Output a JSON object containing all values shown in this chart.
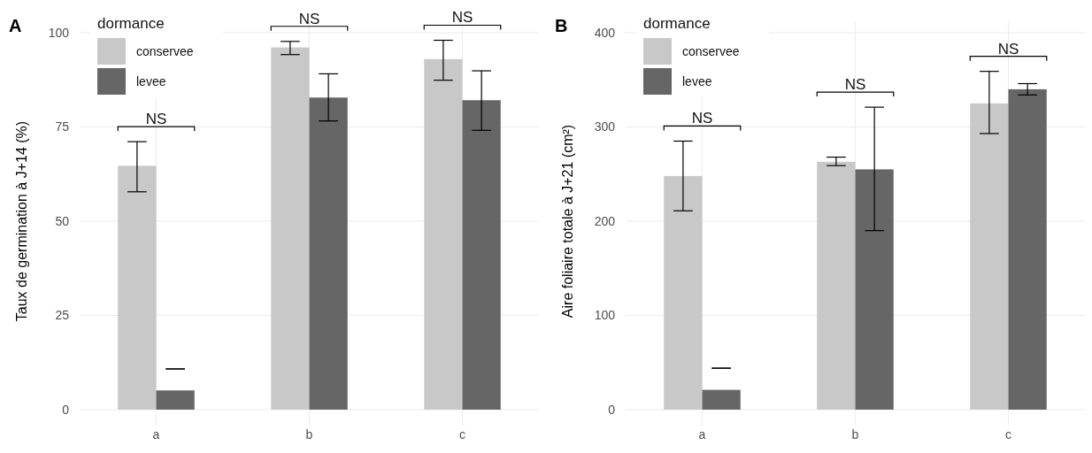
{
  "chart_data": [
    {
      "type": "bar",
      "title": "A",
      "ylabel": "Taux de germination à J+14 (%)",
      "legend_title": "dormance",
      "categories": [
        "a",
        "b",
        "c"
      ],
      "ylim": [
        0,
        103
      ],
      "yticks": [
        0,
        25,
        50,
        75,
        100
      ],
      "grid": true,
      "legend": "top left",
      "series": [
        {
          "name": "conservee",
          "color": "#c8c8c8",
          "values": [
            64.7,
            96.1,
            93.0
          ],
          "errors": [
            [
              57.8,
              71.1
            ],
            [
              94.2,
              97.7
            ],
            [
              87.4,
              98.0
            ]
          ]
        },
        {
          "name": "levee",
          "color": "#666666",
          "values": [
            5.1,
            82.8,
            82.1
          ],
          "errors": [
            [
              10.8,
              10.8
            ],
            [
              76.6,
              89.1
            ],
            [
              74.1,
              89.9
            ]
          ]
        }
      ],
      "annotations": [
        "NS",
        "NS",
        "NS"
      ]
    },
    {
      "type": "bar",
      "title": "B",
      "ylabel": "Aire foliaire totale à J+21 (cm²)",
      "legend_title": "dormance",
      "categories": [
        "a",
        "b",
        "c"
      ],
      "ylim": [
        0,
        412
      ],
      "yticks": [
        0,
        100,
        200,
        300,
        400
      ],
      "grid": true,
      "legend": "top left",
      "series": [
        {
          "name": "conservee",
          "color": "#c8c8c8",
          "values": [
            248,
            263,
            325
          ],
          "errors": [
            [
              211,
              285
            ],
            [
              259,
              268
            ],
            [
              293,
              359
            ]
          ]
        },
        {
          "name": "levee",
          "color": "#666666",
          "values": [
            21,
            255,
            340
          ],
          "errors": [
            [
              44,
              44
            ],
            [
              190,
              321
            ],
            [
              334,
              346
            ]
          ]
        }
      ],
      "annotations": [
        "NS",
        "NS",
        "NS"
      ]
    }
  ]
}
